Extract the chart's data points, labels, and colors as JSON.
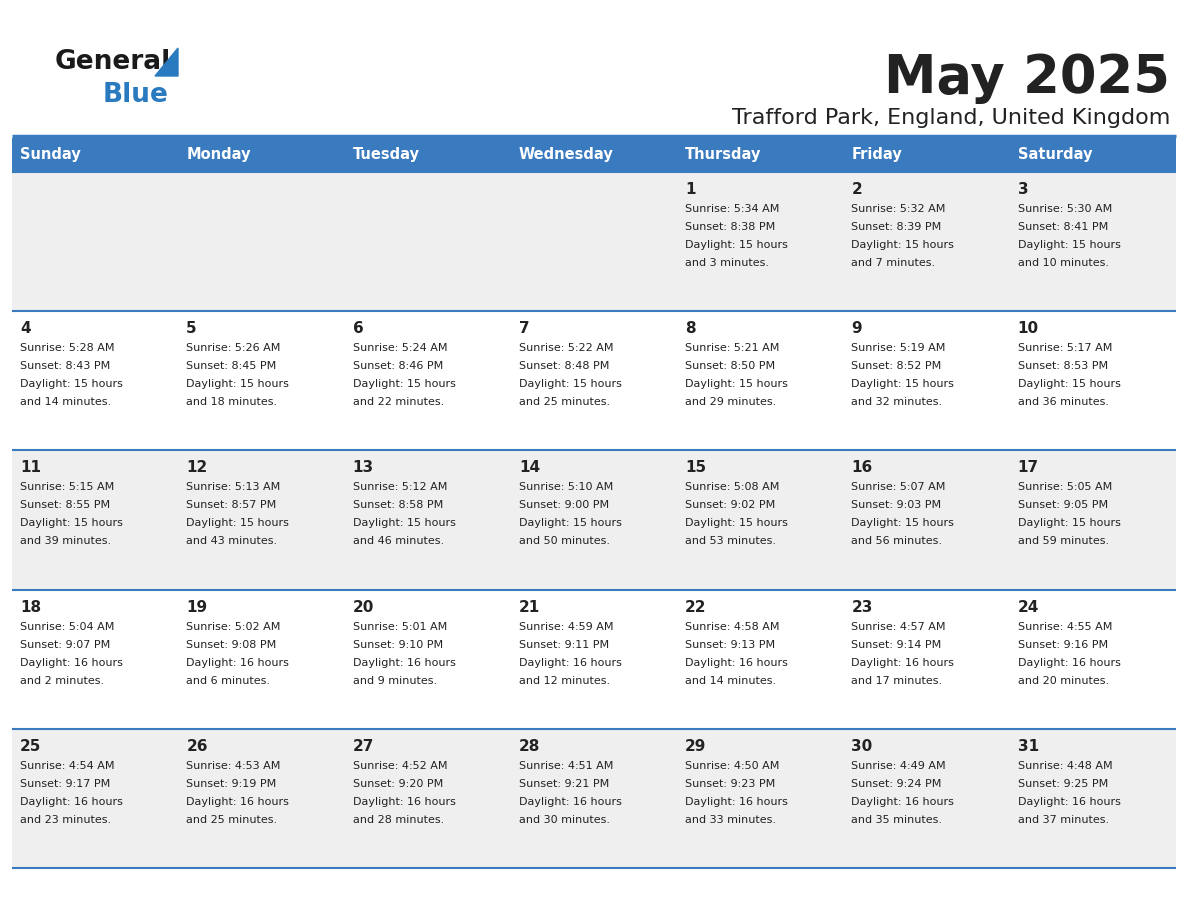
{
  "title": "May 2025",
  "subtitle": "Trafford Park, England, United Kingdom",
  "header_color": "#3a7abf",
  "header_text_color": "#ffffff",
  "cell_bg_even": "#efefef",
  "cell_bg_odd": "#ffffff",
  "border_color": "#3a7abf",
  "text_color": "#222222",
  "logo_black": "#1a1a1a",
  "logo_blue": "#2a7abf",
  "day_headers": [
    "Sunday",
    "Monday",
    "Tuesday",
    "Wednesday",
    "Thursday",
    "Friday",
    "Saturday"
  ],
  "weeks": [
    [
      {
        "day": "",
        "sunrise": "",
        "sunset": "",
        "daylight": ""
      },
      {
        "day": "",
        "sunrise": "",
        "sunset": "",
        "daylight": ""
      },
      {
        "day": "",
        "sunrise": "",
        "sunset": "",
        "daylight": ""
      },
      {
        "day": "",
        "sunrise": "",
        "sunset": "",
        "daylight": ""
      },
      {
        "day": "1",
        "sunrise": "5:34 AM",
        "sunset": "8:38 PM",
        "daylight": "15 hours\nand 3 minutes."
      },
      {
        "day": "2",
        "sunrise": "5:32 AM",
        "sunset": "8:39 PM",
        "daylight": "15 hours\nand 7 minutes."
      },
      {
        "day": "3",
        "sunrise": "5:30 AM",
        "sunset": "8:41 PM",
        "daylight": "15 hours\nand 10 minutes."
      }
    ],
    [
      {
        "day": "4",
        "sunrise": "5:28 AM",
        "sunset": "8:43 PM",
        "daylight": "15 hours\nand 14 minutes."
      },
      {
        "day": "5",
        "sunrise": "5:26 AM",
        "sunset": "8:45 PM",
        "daylight": "15 hours\nand 18 minutes."
      },
      {
        "day": "6",
        "sunrise": "5:24 AM",
        "sunset": "8:46 PM",
        "daylight": "15 hours\nand 22 minutes."
      },
      {
        "day": "7",
        "sunrise": "5:22 AM",
        "sunset": "8:48 PM",
        "daylight": "15 hours\nand 25 minutes."
      },
      {
        "day": "8",
        "sunrise": "5:21 AM",
        "sunset": "8:50 PM",
        "daylight": "15 hours\nand 29 minutes."
      },
      {
        "day": "9",
        "sunrise": "5:19 AM",
        "sunset": "8:52 PM",
        "daylight": "15 hours\nand 32 minutes."
      },
      {
        "day": "10",
        "sunrise": "5:17 AM",
        "sunset": "8:53 PM",
        "daylight": "15 hours\nand 36 minutes."
      }
    ],
    [
      {
        "day": "11",
        "sunrise": "5:15 AM",
        "sunset": "8:55 PM",
        "daylight": "15 hours\nand 39 minutes."
      },
      {
        "day": "12",
        "sunrise": "5:13 AM",
        "sunset": "8:57 PM",
        "daylight": "15 hours\nand 43 minutes."
      },
      {
        "day": "13",
        "sunrise": "5:12 AM",
        "sunset": "8:58 PM",
        "daylight": "15 hours\nand 46 minutes."
      },
      {
        "day": "14",
        "sunrise": "5:10 AM",
        "sunset": "9:00 PM",
        "daylight": "15 hours\nand 50 minutes."
      },
      {
        "day": "15",
        "sunrise": "5:08 AM",
        "sunset": "9:02 PM",
        "daylight": "15 hours\nand 53 minutes."
      },
      {
        "day": "16",
        "sunrise": "5:07 AM",
        "sunset": "9:03 PM",
        "daylight": "15 hours\nand 56 minutes."
      },
      {
        "day": "17",
        "sunrise": "5:05 AM",
        "sunset": "9:05 PM",
        "daylight": "15 hours\nand 59 minutes."
      }
    ],
    [
      {
        "day": "18",
        "sunrise": "5:04 AM",
        "sunset": "9:07 PM",
        "daylight": "16 hours\nand 2 minutes."
      },
      {
        "day": "19",
        "sunrise": "5:02 AM",
        "sunset": "9:08 PM",
        "daylight": "16 hours\nand 6 minutes."
      },
      {
        "day": "20",
        "sunrise": "5:01 AM",
        "sunset": "9:10 PM",
        "daylight": "16 hours\nand 9 minutes."
      },
      {
        "day": "21",
        "sunrise": "4:59 AM",
        "sunset": "9:11 PM",
        "daylight": "16 hours\nand 12 minutes."
      },
      {
        "day": "22",
        "sunrise": "4:58 AM",
        "sunset": "9:13 PM",
        "daylight": "16 hours\nand 14 minutes."
      },
      {
        "day": "23",
        "sunrise": "4:57 AM",
        "sunset": "9:14 PM",
        "daylight": "16 hours\nand 17 minutes."
      },
      {
        "day": "24",
        "sunrise": "4:55 AM",
        "sunset": "9:16 PM",
        "daylight": "16 hours\nand 20 minutes."
      }
    ],
    [
      {
        "day": "25",
        "sunrise": "4:54 AM",
        "sunset": "9:17 PM",
        "daylight": "16 hours\nand 23 minutes."
      },
      {
        "day": "26",
        "sunrise": "4:53 AM",
        "sunset": "9:19 PM",
        "daylight": "16 hours\nand 25 minutes."
      },
      {
        "day": "27",
        "sunrise": "4:52 AM",
        "sunset": "9:20 PM",
        "daylight": "16 hours\nand 28 minutes."
      },
      {
        "day": "28",
        "sunrise": "4:51 AM",
        "sunset": "9:21 PM",
        "daylight": "16 hours\nand 30 minutes."
      },
      {
        "day": "29",
        "sunrise": "4:50 AM",
        "sunset": "9:23 PM",
        "daylight": "16 hours\nand 33 minutes."
      },
      {
        "day": "30",
        "sunrise": "4:49 AM",
        "sunset": "9:24 PM",
        "daylight": "16 hours\nand 35 minutes."
      },
      {
        "day": "31",
        "sunrise": "4:48 AM",
        "sunset": "9:25 PM",
        "daylight": "16 hours\nand 37 minutes."
      }
    ]
  ]
}
